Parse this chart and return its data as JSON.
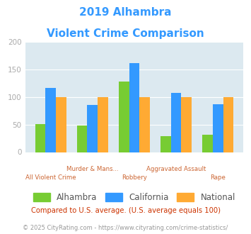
{
  "title_line1": "2019 Alhambra",
  "title_line2": "Violent Crime Comparison",
  "title_color": "#3399ff",
  "categories": [
    "All Violent Crime",
    "Murder & Mans...",
    "Robbery",
    "Aggravated Assault",
    "Rape"
  ],
  "alhambra": [
    51,
    48,
    128,
    29,
    32
  ],
  "california": [
    117,
    86,
    162,
    108,
    87
  ],
  "national": [
    100,
    100,
    100,
    100,
    100
  ],
  "alhambra_color": "#77cc33",
  "california_color": "#3399ff",
  "national_color": "#ffaa33",
  "ylim": [
    0,
    200
  ],
  "yticks": [
    0,
    50,
    100,
    150,
    200
  ],
  "plot_bg": "#dce9f0",
  "legend_labels": [
    "Alhambra",
    "California",
    "National"
  ],
  "x_top_labels": [
    "",
    "Murder & Mans...",
    "",
    "Aggravated Assault",
    ""
  ],
  "x_bot_labels": [
    "All Violent Crime",
    "",
    "Robbery",
    "",
    "Rape"
  ],
  "footnote1": "Compared to U.S. average. (U.S. average equals 100)",
  "footnote2": "© 2025 CityRating.com - https://www.cityrating.com/crime-statistics/",
  "footnote1_color": "#cc3300",
  "footnote2_color": "#999999",
  "xlabel_color": "#cc6633",
  "ytick_color": "#aaaaaa"
}
